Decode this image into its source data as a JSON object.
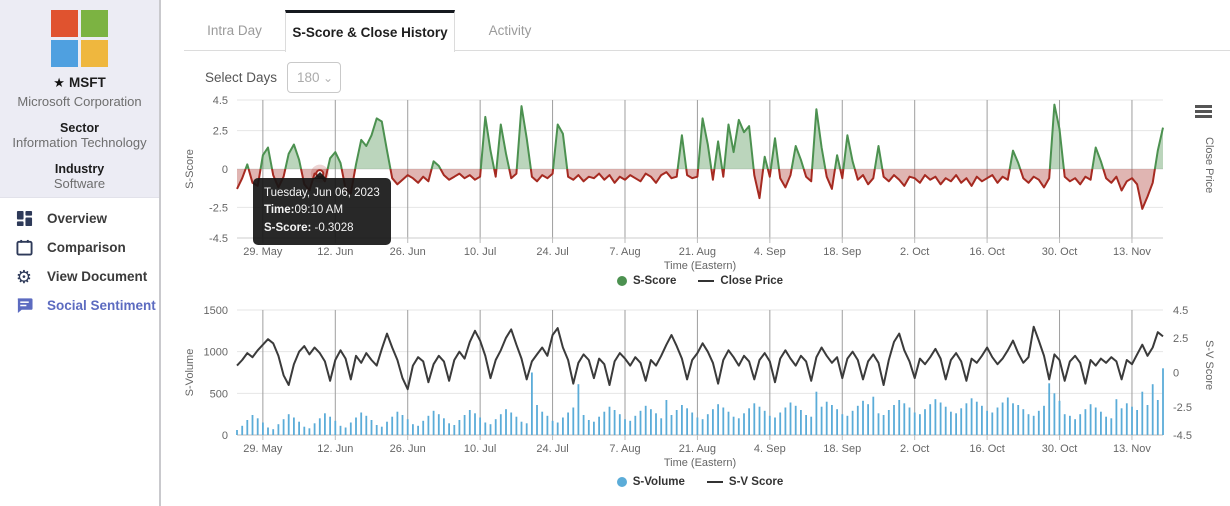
{
  "colors": {
    "accent_indigo": "#5C6BC0",
    "icon_navy": "#2E3A59",
    "score_green": "#4C9150",
    "score_red": "#A62A21",
    "volume_blue": "#5BACD8",
    "line_dark": "#3B3B3B",
    "grid_h": "#E6E6E6",
    "grid_v": "#9E9E9E",
    "logo_red": "#E0532F",
    "logo_green": "#7CB342",
    "logo_blue": "#4FA0E0",
    "logo_yellow": "#EFB73E"
  },
  "sidebar": {
    "ticker": "MSFT",
    "company": "Microsoft Corporation",
    "sector_label": "Sector",
    "sector": "Information Technology",
    "industry_label": "Industry",
    "industry": "Software",
    "nav": [
      {
        "label": "Overview",
        "icon": "dashboard-icon",
        "active": false
      },
      {
        "label": "Comparison",
        "icon": "calendar-icon",
        "active": false
      },
      {
        "label": "View Document",
        "icon": "gear-icon",
        "active": false
      },
      {
        "label": "Social Sentiment",
        "icon": "chat-icon",
        "active": true
      }
    ]
  },
  "tabs": [
    {
      "label": "Intra Day",
      "active": false
    },
    {
      "label": "S-Score & Close History",
      "active": true
    },
    {
      "label": "Activity",
      "active": false
    }
  ],
  "controls": {
    "select_days_label": "Select Days",
    "select_days_value": "180"
  },
  "tooltip": {
    "date": "Tuesday, Jun 06, 2023",
    "time_label": "Time:",
    "time_value": "09:10 AM",
    "score_label": "S-Score:",
    "score_value": " -0.3028"
  },
  "chart_data": [
    {
      "type": "area",
      "title": "S-Score & Close History (top pane)",
      "ylabel": "S-Score",
      "ylabel_right": "Close Price",
      "xlabel": "Time (Eastern)",
      "ylim": [
        -4.5,
        4.5
      ],
      "yticks": [
        4.5,
        2.5,
        0,
        -2.5,
        -4.5
      ],
      "x_tick_labels": [
        "29. May",
        "12. Jun",
        "26. Jun",
        "10. Jul",
        "24. Jul",
        "7. Aug",
        "21. Aug",
        "4. Sep",
        "18. Sep",
        "2. Oct",
        "16. Oct",
        "30. Oct",
        "13. Nov"
      ],
      "x_tick_days": [
        5,
        19,
        33,
        47,
        61,
        75,
        89,
        103,
        117,
        131,
        145,
        159,
        173
      ],
      "n_days": 180,
      "legend": [
        "S-Score",
        "Close Price"
      ],
      "marker": {
        "index": 16,
        "value": -0.3028
      },
      "series": [
        {
          "name": "S-Score",
          "values": [
            -1.3,
            -0.6,
            0.3,
            -0.9,
            -1.1,
            0.9,
            1.4,
            -0.4,
            -1.2,
            -0.5,
            1.0,
            1.6,
            0.6,
            -1.0,
            -1.4,
            -0.3,
            -0.3028,
            -0.8,
            0.7,
            1.1,
            0.4,
            -1.3,
            -1.6,
            0.3,
            1.9,
            1.5,
            2.2,
            3.3,
            3.1,
            1.2,
            -0.6,
            -1.0,
            -0.7,
            -0.4,
            -0.6,
            -0.9,
            -0.5,
            -0.8,
            0.5,
            0.2,
            -0.4,
            -0.7,
            -0.5,
            -0.3,
            -0.6,
            -0.4,
            -0.7,
            -0.5,
            3.4,
            1.2,
            -0.5,
            2.9,
            1.0,
            -0.6,
            -0.3,
            4.1,
            2.0,
            -0.5,
            -0.8,
            -0.4,
            -0.6,
            -0.3,
            2.9,
            2.3,
            -0.5,
            -0.7,
            -0.4,
            -0.8,
            -0.5,
            -0.6,
            -0.3,
            -0.7,
            -0.4,
            -0.9,
            -0.5,
            -0.7,
            -0.4,
            -0.6,
            -0.8,
            -0.3,
            -0.5,
            -0.9,
            -0.4,
            -0.2,
            -0.6,
            -0.5,
            2.2,
            -0.4,
            -0.6,
            -0.5,
            3.3,
            1.6,
            -0.7,
            1.8,
            -0.5,
            2.9,
            1.1,
            3.2,
            2.4,
            2.8,
            -0.4,
            -1.9,
            0.8,
            -0.5,
            2.0,
            -0.6,
            -1.2,
            -0.4,
            1.5,
            0.6,
            -0.5,
            -0.8,
            3.9,
            1.4,
            -0.5,
            -1.3,
            0.9,
            -0.6,
            2.2,
            0.5,
            -0.7,
            -0.4,
            -1.0,
            -0.6,
            1.5,
            -0.5,
            -0.8,
            -0.4,
            -0.7,
            -1.1,
            -0.5,
            -0.6,
            -0.9,
            -0.4,
            -0.7,
            -0.5,
            -1.0,
            -0.6,
            -0.8,
            -0.4,
            -0.9,
            -0.6,
            -1.1,
            -0.5,
            -0.8,
            -0.6,
            -0.4,
            -0.9,
            -0.5,
            -0.7,
            1.2,
            0.4,
            -0.6,
            -0.9,
            -0.5,
            -0.7,
            -1.2,
            -0.6,
            4.2,
            2.6,
            -0.5,
            -0.8,
            -0.6,
            -1.0,
            -0.5,
            -0.7,
            1.4,
            0.5,
            -0.6,
            -0.9,
            -0.5,
            -1.4,
            -0.8,
            -0.6,
            -1.0,
            -2.6,
            -1.8,
            -0.9,
            1.2,
            2.7
          ]
        }
      ]
    },
    {
      "type": "bar+line",
      "title": "S-Volume & S-V Score (bottom pane)",
      "ylabel": "S-Volume",
      "ylabel_right": "S-V Score",
      "xlabel": "Time (Eastern)",
      "ylim_left": [
        0,
        1500
      ],
      "yticks_left": [
        1500,
        1000,
        500,
        0
      ],
      "ylim_right": [
        -4.5,
        4.5
      ],
      "yticks_right": [
        4.5,
        2.5,
        0,
        -2.5,
        -4.5
      ],
      "x_tick_labels": [
        "29. May",
        "12. Jun",
        "26. Jun",
        "10. Jul",
        "24. Jul",
        "7. Aug",
        "21. Aug",
        "4. Sep",
        "18. Sep",
        "2. Oct",
        "16. Oct",
        "30. Oct",
        "13. Nov"
      ],
      "x_tick_days": [
        5,
        19,
        33,
        47,
        61,
        75,
        89,
        103,
        117,
        131,
        145,
        159,
        173
      ],
      "n_days": 180,
      "legend": [
        "S-Volume",
        "S-V Score"
      ],
      "bars": {
        "name": "S-Volume",
        "values": [
          60,
          110,
          180,
          240,
          200,
          150,
          90,
          70,
          130,
          190,
          250,
          210,
          160,
          100,
          80,
          140,
          200,
          260,
          220,
          170,
          110,
          90,
          150,
          210,
          270,
          230,
          180,
          120,
          100,
          160,
          220,
          280,
          240,
          190,
          130,
          110,
          170,
          230,
          290,
          250,
          200,
          140,
          120,
          180,
          240,
          300,
          260,
          210,
          150,
          130,
          190,
          250,
          310,
          270,
          220,
          160,
          140,
          750,
          360,
          280,
          230,
          170,
          150,
          210,
          270,
          330,
          610,
          240,
          180,
          160,
          220,
          280,
          340,
          300,
          250,
          190,
          170,
          230,
          290,
          350,
          310,
          260,
          200,
          420,
          240,
          300,
          360,
          320,
          270,
          210,
          190,
          250,
          310,
          370,
          330,
          280,
          220,
          200,
          260,
          320,
          380,
          340,
          290,
          230,
          210,
          270,
          330,
          390,
          350,
          300,
          240,
          220,
          520,
          340,
          400,
          360,
          310,
          250,
          230,
          290,
          350,
          410,
          370,
          460,
          260,
          240,
          300,
          360,
          420,
          380,
          330,
          270,
          250,
          310,
          370,
          430,
          390,
          340,
          280,
          260,
          320,
          380,
          440,
          400,
          350,
          290,
          270,
          330,
          390,
          450,
          380,
          360,
          310,
          250,
          230,
          290,
          350,
          620,
          500,
          410,
          250,
          230,
          190,
          250,
          310,
          370,
          330,
          280,
          220,
          200,
          430,
          320,
          380,
          340,
          300,
          520,
          360,
          610,
          420,
          800
        ]
      },
      "line": {
        "name": "S-V Score",
        "values": [
          0.5,
          0.9,
          1.4,
          1.1,
          1.6,
          2.0,
          2.4,
          2.1,
          1.2,
          -0.2,
          -0.9,
          0.6,
          1.5,
          1.9,
          1.3,
          1.8,
          1.4,
          0.8,
          -0.6,
          0.9,
          1.6,
          1.0,
          -0.5,
          1.2,
          0.7,
          1.4,
          0.9,
          0.5,
          1.7,
          2.8,
          1.8,
          0.9,
          -0.4,
          -1.2,
          0.5,
          1.1,
          0.8,
          -0.7,
          0.6,
          1.2,
          0.8,
          -0.6,
          0.9,
          1.5,
          1.0,
          2.2,
          3.0,
          2.3,
          1.2,
          -0.4,
          0.9,
          1.6,
          2.5,
          3.1,
          2.0,
          1.0,
          -0.5,
          0.8,
          1.3,
          1.8,
          1.2,
          2.7,
          3.2,
          1.8,
          0.9,
          -0.8,
          0.7,
          1.3,
          0.9,
          -0.4,
          1.0,
          0.6,
          -0.9,
          0.8,
          1.4,
          1.0,
          0.5,
          1.1,
          0.7,
          -0.6,
          0.9,
          0.5,
          1.2,
          2.0,
          2.7,
          1.9,
          1.0,
          -0.5,
          0.9,
          1.4,
          2.1,
          1.5,
          0.7,
          -0.8,
          0.9,
          1.6,
          1.1,
          0.5,
          1.2,
          0.8,
          -0.5,
          0.9,
          1.4,
          0.8,
          -0.7,
          1.0,
          1.6,
          1.0,
          0.5,
          1.2,
          0.8,
          -0.6,
          1.1,
          1.8,
          1.2,
          0.7,
          1.1,
          -0.4,
          1.0,
          1.5,
          0.9,
          -0.5,
          0.8,
          1.3,
          0.7,
          -0.9,
          0.9,
          2.2,
          2.8,
          1.6,
          0.8,
          -0.4,
          1.0,
          0.6,
          1.1,
          1.7,
          1.0,
          -0.5,
          0.9,
          1.4,
          0.8,
          -0.6,
          1.0,
          0.7,
          1.2,
          1.8,
          1.1,
          0.6,
          1.0,
          1.6,
          2.3,
          1.4,
          0.7,
          1.1,
          3.3,
          2.3,
          1.2,
          -0.5,
          1.3,
          0.9,
          -0.6,
          0.8,
          1.2,
          0.7,
          -0.8,
          0.9,
          0.5,
          1.0,
          0.7,
          1.1,
          0.8,
          -0.5,
          0.9,
          0.6,
          1.3,
          2.0,
          1.2,
          1.8,
          2.9,
          2.6
        ]
      }
    }
  ]
}
